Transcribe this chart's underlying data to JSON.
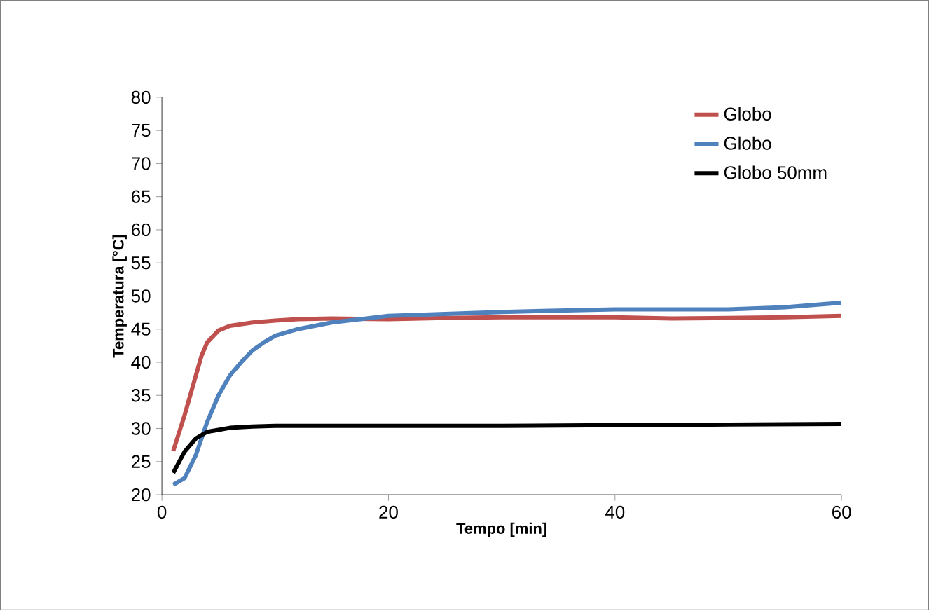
{
  "chart_data": {
    "type": "line",
    "xlabel": "Tempo [min]",
    "ylabel": "Temperatura [°C]",
    "xlim": [
      0,
      60
    ],
    "xticks": [
      0,
      20,
      40,
      60
    ],
    "ylim": [
      20,
      80
    ],
    "yticks": [
      20,
      25,
      30,
      35,
      40,
      45,
      50,
      55,
      60,
      65,
      70,
      75,
      80
    ],
    "legend": "top right",
    "series": [
      {
        "name": "Globo",
        "color": "#c0504d",
        "x": [
          1,
          2,
          3,
          3.5,
          4,
          5,
          6,
          8,
          10,
          12,
          15,
          20,
          25,
          30,
          35,
          40,
          45,
          50,
          55,
          60
        ],
        "values": [
          26.6,
          32,
          38,
          41,
          43,
          44.8,
          45.5,
          46,
          46.3,
          46.5,
          46.6,
          46.5,
          46.7,
          46.8,
          46.8,
          46.8,
          46.6,
          46.7,
          46.8,
          47
        ]
      },
      {
        "name": "Globo",
        "color": "#4f81bd",
        "x": [
          1,
          2,
          3,
          4,
          5,
          6,
          7,
          8,
          9,
          10,
          12,
          15,
          20,
          25,
          30,
          35,
          40,
          45,
          50,
          55,
          60
        ],
        "values": [
          21.5,
          22.5,
          26,
          31,
          35,
          38,
          40,
          41.8,
          43,
          44,
          45,
          46,
          47,
          47.3,
          47.6,
          47.8,
          48,
          48,
          48,
          48.3,
          49
        ]
      },
      {
        "name": "Globo 50mm",
        "color": "#000000",
        "x": [
          1,
          2,
          3,
          4,
          5,
          6,
          8,
          10,
          15,
          20,
          30,
          40,
          50,
          60
        ],
        "values": [
          23.3,
          26.5,
          28.5,
          29.5,
          29.8,
          30.1,
          30.3,
          30.4,
          30.4,
          30.4,
          30.4,
          30.5,
          30.6,
          30.7
        ]
      }
    ]
  }
}
